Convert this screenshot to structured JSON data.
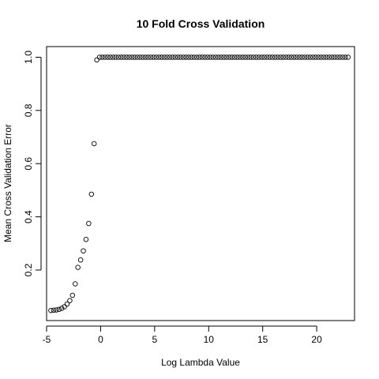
{
  "chart_data": {
    "type": "scatter",
    "title": "10 Fold Cross Validation",
    "xlabel": "Log Lambda Value",
    "ylabel": "Mean Cross Validation Error",
    "xlim": [
      -5.0,
      23.5
    ],
    "ylim": [
      0.01,
      1.04
    ],
    "xticks": [
      -5,
      0,
      5,
      10,
      15,
      20
    ],
    "yticks": [
      0.2,
      0.4,
      0.6,
      0.8,
      1.0
    ],
    "xtick_labels": [
      "-5",
      "0",
      "5",
      "10",
      "15",
      "20"
    ],
    "ytick_labels": [
      "0.2",
      "0.4",
      "0.6",
      "0.8",
      "1.0"
    ],
    "grid": false,
    "series": [
      {
        "x": [
          -4.6,
          -4.35,
          -4.1,
          -3.85,
          -3.6,
          -3.35,
          -3.1,
          -2.85,
          -2.6,
          -2.35,
          -2.1,
          -1.85,
          -1.6,
          -1.35,
          -1.1,
          -0.85,
          -0.6,
          -0.35,
          -0.1,
          0.15,
          0.4,
          0.65,
          0.9,
          1.15,
          1.4,
          1.65,
          1.9,
          2.15,
          2.4,
          2.65,
          2.9,
          3.15,
          3.4,
          3.65,
          3.9,
          4.15,
          4.4,
          4.65,
          4.9,
          5.15,
          5.4,
          5.65,
          5.9,
          6.15,
          6.4,
          6.65,
          6.9,
          7.15,
          7.4,
          7.65,
          7.9,
          8.15,
          8.4,
          8.65,
          8.9,
          9.15,
          9.4,
          9.65,
          9.9,
          10.15,
          10.4,
          10.65,
          10.9,
          11.15,
          11.4,
          11.65,
          11.9,
          12.15,
          12.4,
          12.65,
          12.9,
          13.15,
          13.4,
          13.65,
          13.9,
          14.15,
          14.4,
          14.65,
          14.9,
          15.15,
          15.4,
          15.65,
          15.9,
          16.15,
          16.4,
          16.65,
          16.9,
          17.15,
          17.4,
          17.65,
          17.9,
          18.15,
          18.4,
          18.65,
          18.9,
          19.15,
          19.4,
          19.65,
          19.9,
          20.15,
          20.4,
          20.65,
          20.9,
          21.15,
          21.4,
          21.65,
          21.9,
          22.15,
          22.4,
          22.65,
          22.9
        ],
        "y": [
          0.048,
          0.049,
          0.05,
          0.052,
          0.056,
          0.062,
          0.072,
          0.085,
          0.105,
          0.148,
          0.21,
          0.238,
          0.272,
          0.315,
          0.375,
          0.485,
          0.675,
          0.99,
          1.0,
          1.0,
          1.0,
          1.0,
          1.0,
          1.0,
          1.0,
          1.0,
          1.0,
          1.0,
          1.0,
          1.0,
          1.0,
          1.0,
          1.0,
          1.0,
          1.0,
          1.0,
          1.0,
          1.0,
          1.0,
          1.0,
          1.0,
          1.0,
          1.0,
          1.0,
          1.0,
          1.0,
          1.0,
          1.0,
          1.0,
          1.0,
          1.0,
          1.0,
          1.0,
          1.0,
          1.0,
          1.0,
          1.0,
          1.0,
          1.0,
          1.0,
          1.0,
          1.0,
          1.0,
          1.0,
          1.0,
          1.0,
          1.0,
          1.0,
          1.0,
          1.0,
          1.0,
          1.0,
          1.0,
          1.0,
          1.0,
          1.0,
          1.0,
          1.0,
          1.0,
          1.0,
          1.0,
          1.0,
          1.0,
          1.0,
          1.0,
          1.0,
          1.0,
          1.0,
          1.0,
          1.0,
          1.0,
          1.0,
          1.0,
          1.0,
          1.0,
          1.0,
          1.0,
          1.0,
          1.0,
          1.0,
          1.0,
          1.0,
          1.0,
          1.0,
          1.0,
          1.0,
          1.0,
          1.0,
          1.0,
          1.0,
          1.0
        ]
      }
    ]
  }
}
